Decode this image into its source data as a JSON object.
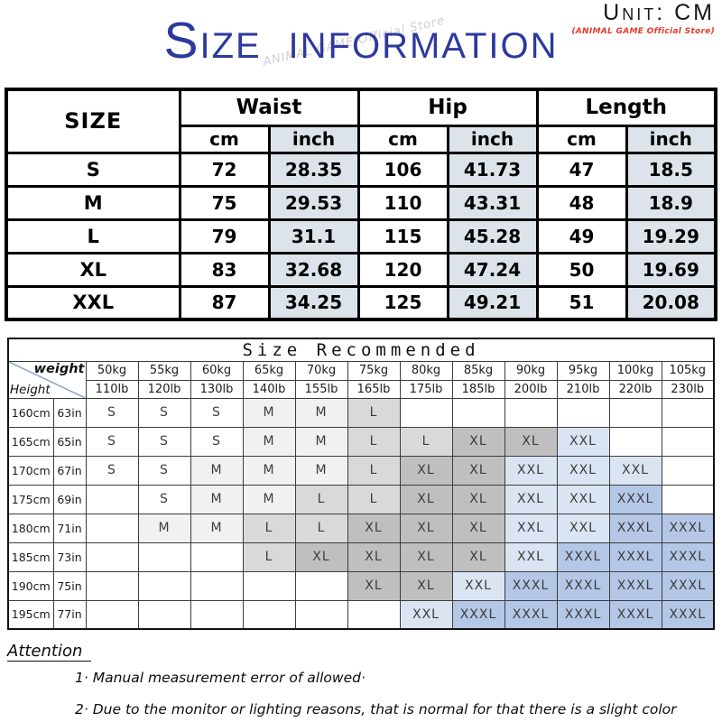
{
  "header": {
    "unit_label": "Unit: CM",
    "store_label": "(ANIMAL GAME Official Store)",
    "title": "Size information",
    "watermark": "ANIMAL GAME Official Store"
  },
  "size_table": {
    "size_col_header": "SIZE",
    "measure_groups": [
      "Waist",
      "Hip",
      "Length"
    ],
    "unit_headers": [
      "cm",
      "inch",
      "cm",
      "inch",
      "cm",
      "inch"
    ],
    "rows": [
      {
        "size": "S",
        "cells": [
          "72",
          "28.35",
          "106",
          "41.73",
          "47",
          "18.5"
        ]
      },
      {
        "size": "M",
        "cells": [
          "75",
          "29.53",
          "110",
          "43.31",
          "48",
          "18.9"
        ]
      },
      {
        "size": "L",
        "cells": [
          "79",
          "31.1",
          "115",
          "45.28",
          "49",
          "19.29"
        ]
      },
      {
        "size": "XL",
        "cells": [
          "83",
          "32.68",
          "120",
          "47.24",
          "50",
          "19.69"
        ]
      },
      {
        "size": "XXL",
        "cells": [
          "87",
          "34.25",
          "125",
          "49.21",
          "51",
          "20.08"
        ]
      }
    ]
  },
  "recommend_table": {
    "title": "Size Recommended",
    "weight_label": "weight",
    "height_label": "Height",
    "weights_kg": [
      "50kg",
      "55kg",
      "60kg",
      "65kg",
      "70kg",
      "75kg",
      "80kg",
      "85kg",
      "90kg",
      "95kg",
      "100kg",
      "105kg"
    ],
    "weights_lb": [
      "110lb",
      "120lb",
      "130lb",
      "140lb",
      "155lb",
      "165lb",
      "175lb",
      "185lb",
      "200lb",
      "210lb",
      "220lb",
      "230lb"
    ],
    "rows": [
      {
        "height_cm": "160cm",
        "height_in": "63in",
        "cells": [
          "S",
          "S",
          "S",
          "M",
          "M",
          "L",
          "",
          "",
          "",
          "",
          "",
          ""
        ]
      },
      {
        "height_cm": "165cm",
        "height_in": "65in",
        "cells": [
          "S",
          "S",
          "S",
          "M",
          "M",
          "L",
          "L",
          "XL",
          "XL",
          "XXL",
          "",
          ""
        ]
      },
      {
        "height_cm": "170cm",
        "height_in": "67in",
        "cells": [
          "S",
          "S",
          "M",
          "M",
          "M",
          "L",
          "XL",
          "XL",
          "XXL",
          "XXL",
          "XXL",
          ""
        ]
      },
      {
        "height_cm": "175cm",
        "height_in": "69in",
        "cells": [
          "",
          "S",
          "M",
          "M",
          "L",
          "L",
          "XL",
          "XL",
          "XXL",
          "XXL",
          "XXXL",
          ""
        ]
      },
      {
        "height_cm": "180cm",
        "height_in": "71in",
        "cells": [
          "",
          "M",
          "M",
          "L",
          "L",
          "XL",
          "XL",
          "XL",
          "XXL",
          "XXL",
          "XXXL",
          "XXXL"
        ]
      },
      {
        "height_cm": "185cm",
        "height_in": "73in",
        "cells": [
          "",
          "",
          "",
          "L",
          "XL",
          "XL",
          "XL",
          "XL",
          "XXL",
          "XXXL",
          "XXXL",
          "XXXL"
        ]
      },
      {
        "height_cm": "190cm",
        "height_in": "75in",
        "cells": [
          "",
          "",
          "",
          "",
          "",
          "XL",
          "XL",
          "XXL",
          "XXXL",
          "XXXL",
          "XXXL",
          "XXXL"
        ]
      },
      {
        "height_cm": "195cm",
        "height_in": "77in",
        "cells": [
          "",
          "",
          "",
          "",
          "",
          "",
          "XXL",
          "XXXL",
          "XXXL",
          "XXXL",
          "XXXL",
          "XXXL"
        ]
      }
    ]
  },
  "attention": {
    "title": "Attention",
    "items": [
      "1· Manual measurement error of allowed·",
      "2·  Due to the monitor or lighting reasons, that is normal for that there is a slight color difference between the real item and the picture·"
    ]
  },
  "colors": {
    "title_blue": "#2c3a9d",
    "store_red": "#e8392b",
    "inch_cell_bg": "#dde3ea",
    "shade_m": "#f1f1f1",
    "shade_l": "#d9d9d9",
    "shade_xl": "#bfbfbf",
    "shade_xxl": "#dbe4f3",
    "shade_xxxl": "#b4c7e7"
  }
}
